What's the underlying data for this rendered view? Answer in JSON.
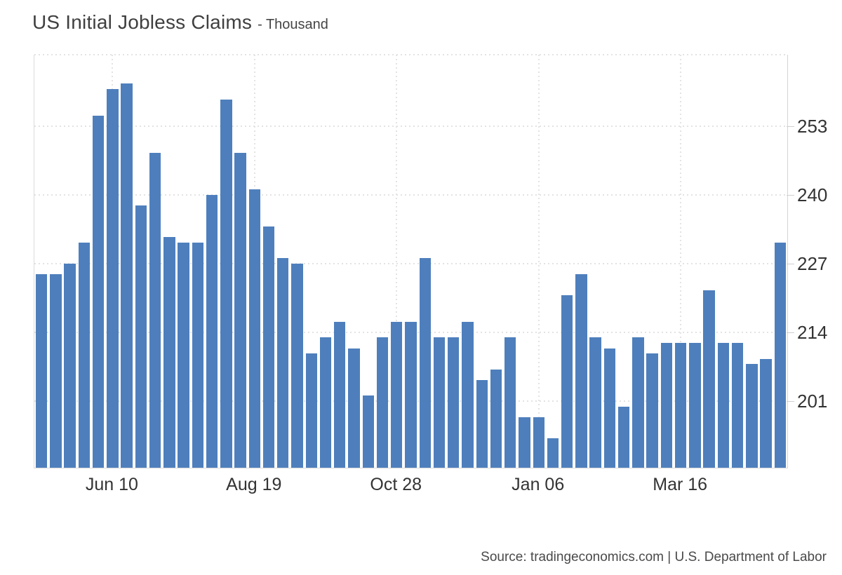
{
  "header": {
    "title": "US Initial Jobless Claims",
    "subtitle": "- Thousand"
  },
  "footer": {
    "source": "Source: tradingeconomics.com | U.S. Department of Labor"
  },
  "chart_data": {
    "type": "bar",
    "title": "US Initial Jobless Claims",
    "unit": "Thousand",
    "ylabel": "",
    "xlabel": "",
    "values": [
      225,
      225,
      227,
      231,
      255,
      260,
      261,
      238,
      248,
      232,
      231,
      231,
      240,
      258,
      248,
      241,
      234,
      228,
      227,
      210,
      213,
      216,
      211,
      202,
      213,
      216,
      216,
      228,
      213,
      213,
      216,
      205,
      207,
      213,
      198,
      198,
      194,
      221,
      225,
      213,
      211,
      200,
      213,
      210,
      212,
      212,
      212,
      222,
      212,
      212,
      208,
      209,
      231
    ],
    "x_tick_labels": [
      "Jun 10",
      "Aug 19",
      "Oct 28",
      "Jan 06",
      "Mar 16"
    ],
    "x_tick_bar_indices": [
      5,
      15,
      25,
      35,
      45
    ],
    "y_ticks": [
      253,
      240,
      227,
      214,
      201
    ],
    "ylim": [
      188.4,
      266.5
    ],
    "grid": "dotted",
    "legend": "none",
    "colors": {
      "bar": "#4e7fbc",
      "gridline": "#e3e3e3",
      "axis_line": "#d9d9d9",
      "tick_label": "#333333",
      "title_text": "#3f3f3f",
      "source_text": "#4a4a4a",
      "background": "#ffffff"
    }
  }
}
